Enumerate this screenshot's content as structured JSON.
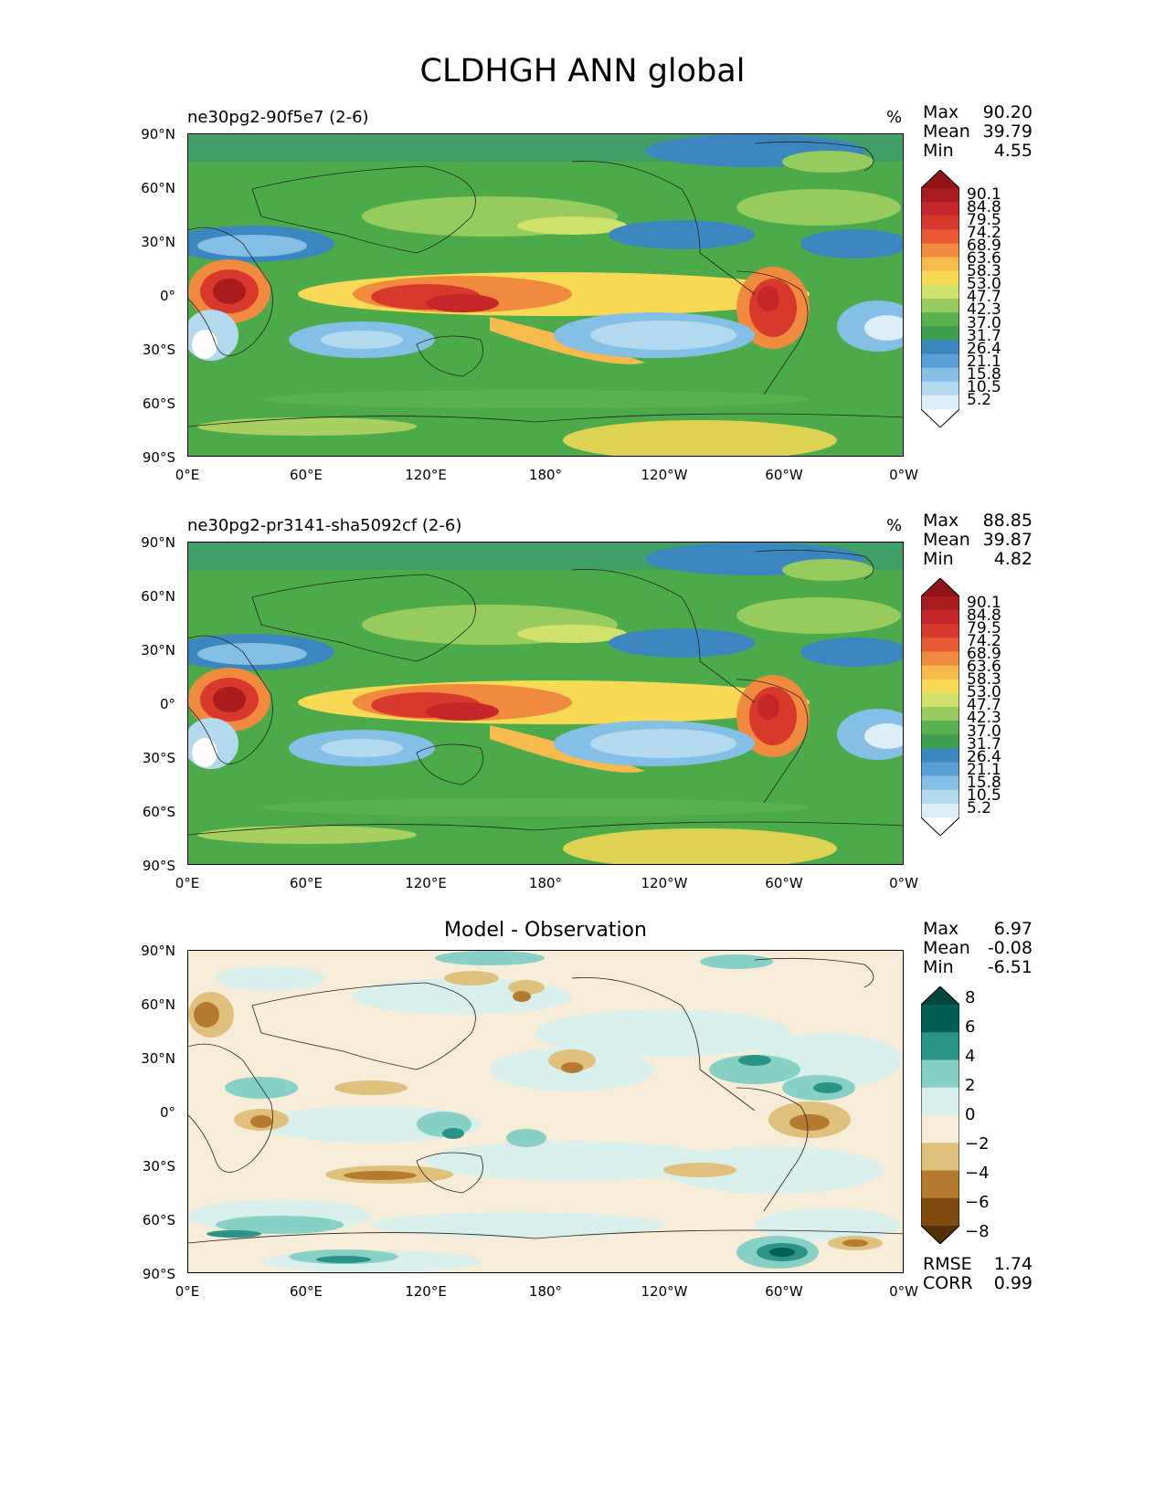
{
  "title": "CLDHGH ANN global",
  "panels": [
    {
      "id": "test",
      "title": "ne30pg2-90f5e7 (2-6)",
      "units": "%",
      "stats": [
        {
          "label": "Max",
          "value": "90.20"
        },
        {
          "label": "Mean",
          "value": "39.79"
        },
        {
          "label": "Min",
          "value": "4.55"
        }
      ]
    },
    {
      "id": "ref",
      "title": "ne30pg2-pr3141-sha5092cf (2-6)",
      "units": "%",
      "stats": [
        {
          "label": "Max",
          "value": "88.85"
        },
        {
          "label": "Mean",
          "value": "39.87"
        },
        {
          "label": "Min",
          "value": "4.82"
        }
      ]
    },
    {
      "id": "diff",
      "title": "Model - Observation",
      "units": "",
      "stats": [
        {
          "label": "Max",
          "value": "6.97"
        },
        {
          "label": "Mean",
          "value": "-0.08"
        },
        {
          "label": "Min",
          "value": "-6.51"
        }
      ],
      "metrics": [
        {
          "label": "RMSE",
          "value": "1.74"
        },
        {
          "label": "CORR",
          "value": "0.99"
        }
      ]
    }
  ],
  "axes": {
    "lat_ticks": [
      "90°N",
      "60°N",
      "30°N",
      "0°",
      "30°S",
      "60°S",
      "90°S"
    ],
    "lon_ticks": [
      "0°E",
      "60°E",
      "120°E",
      "180°",
      "120°W",
      "60°W",
      "0°W"
    ]
  },
  "colorbars": {
    "field": {
      "levels": [
        "90.1",
        "84.8",
        "79.5",
        "74.2",
        "68.9",
        "63.6",
        "58.3",
        "53.0",
        "47.7",
        "42.3",
        "37.0",
        "31.7",
        "26.4",
        "21.1",
        "15.8",
        "10.5",
        "5.2"
      ],
      "colors": [
        "#8f1517",
        "#a81b1e",
        "#c4262a",
        "#d8392d",
        "#e75a33",
        "#f08a3f",
        "#f6ba4d",
        "#f8d955",
        "#cfe06b",
        "#97cb5e",
        "#5ab150",
        "#3d9f4d",
        "#3b86bf",
        "#5a9fd4",
        "#86bfe5",
        "#b3d9ef",
        "#dceef8",
        "#ffffff"
      ]
    },
    "diff": {
      "levels": [
        "8",
        "6",
        "4",
        "2",
        "0",
        "−2",
        "−4",
        "−6",
        "−8"
      ],
      "colors": [
        "#01473b",
        "#035f55",
        "#2a9286",
        "#86d0c5",
        "#d9efeb",
        "#f6ecd7",
        "#dfc07c",
        "#b47a30",
        "#7e4a0d",
        "#543005"
      ]
    }
  },
  "chart_data": [
    {
      "type": "heatmap",
      "title": "ne30pg2-90f5e7 (2-6)",
      "units": "%",
      "xlabel": "",
      "ylabel": "",
      "xlim": [
        0,
        360
      ],
      "ylim": [
        -90,
        90
      ],
      "max": 90.2,
      "mean": 39.79,
      "min": 4.55
    },
    {
      "type": "heatmap",
      "title": "ne30pg2-pr3141-sha5092cf (2-6)",
      "units": "%",
      "xlabel": "",
      "ylabel": "",
      "xlim": [
        0,
        360
      ],
      "ylim": [
        -90,
        90
      ],
      "max": 88.85,
      "mean": 39.87,
      "min": 4.82
    },
    {
      "type": "heatmap",
      "title": "Model - Observation",
      "xlabel": "",
      "ylabel": "",
      "xlim": [
        0,
        360
      ],
      "ylim": [
        -90,
        90
      ],
      "max": 6.97,
      "mean": -0.08,
      "min": -6.51,
      "rmse": 1.74,
      "corr": 0.99
    }
  ]
}
